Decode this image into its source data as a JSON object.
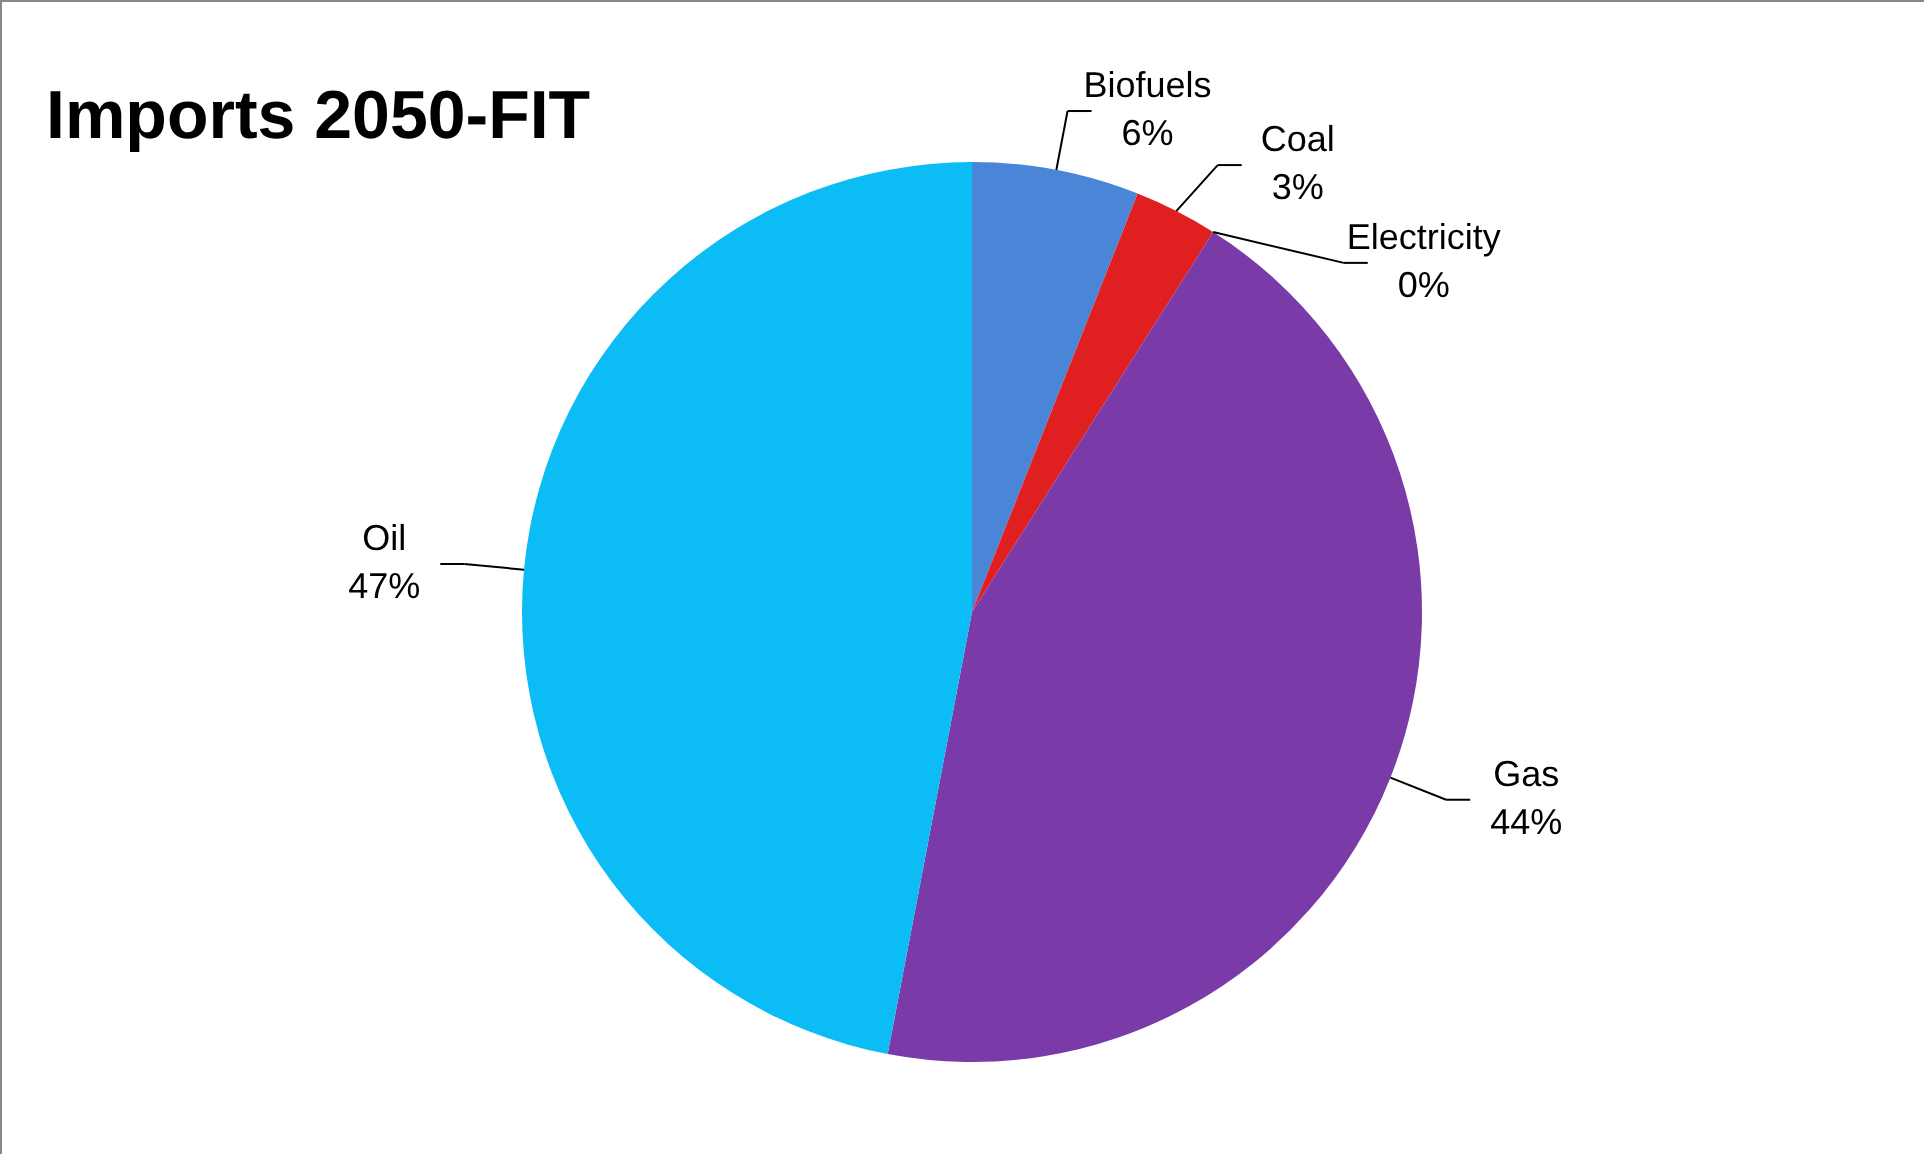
{
  "chart_data": {
    "type": "pie",
    "title": "Imports 2050-FIT",
    "categories": [
      "Biofuels",
      "Coal",
      "Electricity",
      "Gas",
      "Oil"
    ],
    "values": [
      6,
      3,
      0,
      44,
      47
    ],
    "value_labels": [
      "6%",
      "3%",
      "0%",
      "44%",
      "47%"
    ],
    "colors": [
      "#4a86d8",
      "#e02020",
      "#92d050",
      "#7a3aa8",
      "#0bbcf5"
    ]
  }
}
